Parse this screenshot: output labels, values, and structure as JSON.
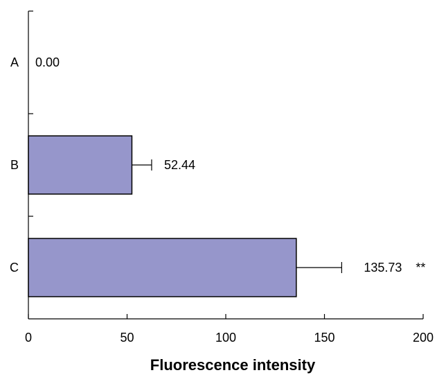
{
  "chart_data": {
    "type": "bar",
    "orientation": "horizontal",
    "categories": [
      "A",
      "B",
      "C"
    ],
    "values": [
      0.0,
      52.44,
      135.73
    ],
    "error": [
      0,
      10,
      23
    ],
    "data_labels": [
      "0.00",
      "52.44",
      "135.73"
    ],
    "significance": [
      "",
      "",
      "**"
    ],
    "xlabel": "Fluorescence intensity",
    "ylabel": "",
    "xlim": [
      0,
      200
    ],
    "xticks": [
      0,
      50,
      100,
      150,
      200
    ],
    "xtick_labels": [
      "0",
      "50",
      "100",
      "150",
      "200"
    ],
    "grid": false,
    "bar_color": "#9696cb",
    "edge_color": "#000000"
  }
}
